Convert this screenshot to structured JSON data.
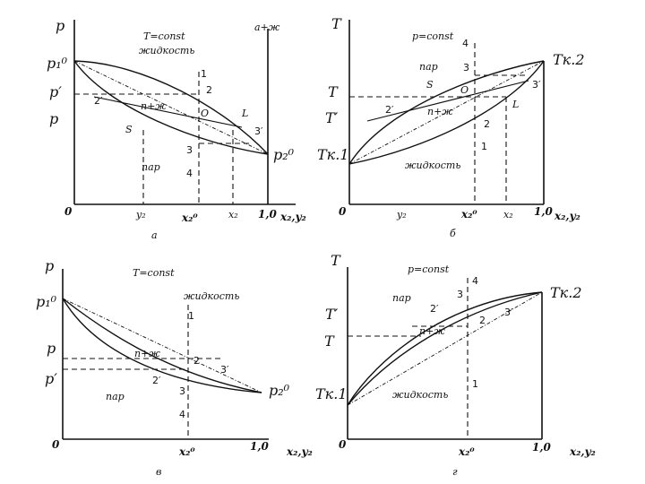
{
  "diagrams": {
    "a": {
      "caption": "а",
      "y_axis": "p",
      "condition": "T=const",
      "liquid": "жидкость",
      "corner_label": "a+ж",
      "p1": "p₁⁰",
      "p_prime": "p′",
      "p": "p",
      "two_phase": "п+ж",
      "vapor": "пар",
      "p2": "p₂⁰",
      "origin": "0",
      "y2": "y₂",
      "x2_0": "x₂⁰",
      "x2": "x₂",
      "one": "1,0",
      "x_axis": "x₂,y₂",
      "pt_1": "1",
      "pt_2": "2",
      "pt_2p": "2′",
      "pt_3": "3",
      "pt_3p": "3′",
      "pt_4": "4",
      "pt_O": "O",
      "pt_S": "S",
      "pt_L": "L"
    },
    "b": {
      "caption": "б",
      "y_axis": "T",
      "condition": "p=const",
      "vapor": "пар",
      "two_phase": "п+ж",
      "liquid": "жидкость",
      "T_prime": "T′",
      "T": "T",
      "Tk2": "Tк.2",
      "Tk1": "Tк.1",
      "origin": "0",
      "y2": "y₂",
      "x2_0": "x₂⁰",
      "x2": "x₂",
      "one": "1,0",
      "x_axis": "x₂,y₂",
      "pt_1": "1",
      "pt_2": "2",
      "pt_2p": "2′",
      "pt_3": "3",
      "pt_3p": "3′",
      "pt_4": "4",
      "pt_O": "O",
      "pt_S": "S",
      "pt_L": "L"
    },
    "c": {
      "caption": "в",
      "y_axis": "p",
      "condition": "T=const",
      "liquid": "жидкость",
      "p1": "p₁⁰",
      "p": "p",
      "p_prime": "p′",
      "two_phase": "п+ж",
      "vapor": "пар",
      "p2": "p₂⁰",
      "origin": "0",
      "x2_0": "x₂⁰",
      "one": "1,0",
      "x_axis": "x₂,y₂",
      "pt_1": "1",
      "pt_2": "2",
      "pt_2p": "2′",
      "pt_3": "3",
      "pt_3p": "3′",
      "pt_4": "4"
    },
    "d": {
      "caption": "г",
      "y_axis": "T",
      "condition": "p=const",
      "vapor": "пар",
      "two_phase": "п+ж",
      "liquid": "жидкость",
      "T_prime": "T′",
      "T": "T",
      "Tk2": "Tк.2",
      "Tk1": "Tк.1",
      "origin": "0",
      "x2_0": "x₂⁰",
      "one": "1,0",
      "x_axis": "x₂,y₂",
      "pt_1": "1",
      "pt_2": "2",
      "pt_2p": "2′",
      "pt_3": "3",
      "pt_3p": "3′",
      "pt_4": "4"
    }
  }
}
